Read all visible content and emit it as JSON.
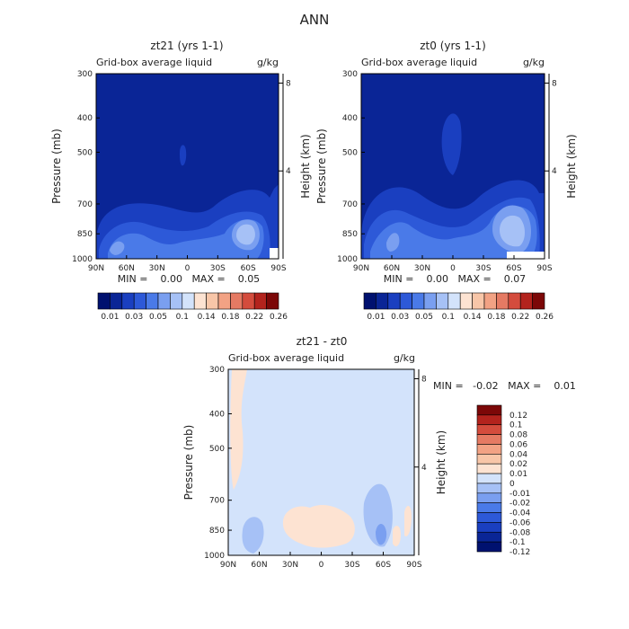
{
  "main_title": "ANN",
  "colors": {
    "abs_scale": [
      "#00116f",
      "#0a2596",
      "#1a3fc0",
      "#2d59d8",
      "#4a7ae8",
      "#7a9ff0",
      "#a6c1f6",
      "#d3e3fb",
      "#fde3d2",
      "#f8c6a8",
      "#f2a284",
      "#e57a63",
      "#d44c3d",
      "#b3231d",
      "#7c0808"
    ],
    "diff_scale": [
      "#00116f",
      "#0a2596",
      "#1a3fc0",
      "#2d59d8",
      "#4a7ae8",
      "#7a9ff0",
      "#a6c1f6",
      "#d3e3fb",
      "#fde3d2",
      "#f8c6a8",
      "#f2a284",
      "#e57a63",
      "#d44c3d",
      "#b3231d",
      "#7c0808"
    ],
    "field_bg": "#0a2596",
    "diff_bg": "#d3e3fb"
  },
  "chart_data": [
    {
      "type": "heatmap",
      "title": "zt21 (yrs 1-1)",
      "subtitle": "Grid-box average liquid",
      "units": "g/kg",
      "xlabel": "",
      "ylabel": "Pressure (mb)",
      "y2label": "Height (km)",
      "x_ticks": [
        "90N",
        "60N",
        "30N",
        "0",
        "30S",
        "60S",
        "90S"
      ],
      "y_ticks": [
        300,
        400,
        500,
        700,
        850,
        1000
      ],
      "y2_ticks": [
        8,
        4
      ],
      "stats": "MIN =    0.00   MAX =    0.05",
      "levels": [
        0.01,
        0.02,
        0.03,
        0.04,
        0.05,
        0.06,
        0.1,
        0.12,
        0.14,
        0.16,
        0.18,
        0.2,
        0.22,
        0.24,
        0.26
      ],
      "level_labels": [
        "0.01",
        "0.03",
        "0.05",
        "0.1",
        "0.14",
        "0.18",
        "0.22",
        "0.26"
      ]
    },
    {
      "type": "heatmap",
      "title": "zt0 (yrs 1-1)",
      "subtitle": "Grid-box average liquid",
      "units": "g/kg",
      "xlabel": "",
      "ylabel": "Pressure (mb)",
      "y2label": "Height (km)",
      "x_ticks": [
        "90N",
        "60N",
        "30N",
        "0",
        "30S",
        "60S",
        "90S"
      ],
      "y_ticks": [
        300,
        400,
        500,
        700,
        850,
        1000
      ],
      "y2_ticks": [
        8,
        4
      ],
      "stats": "MIN =    0.00   MAX =    0.07",
      "levels": [
        0.01,
        0.02,
        0.03,
        0.04,
        0.05,
        0.06,
        0.1,
        0.12,
        0.14,
        0.16,
        0.18,
        0.2,
        0.22,
        0.24,
        0.26
      ],
      "level_labels": [
        "0.01",
        "0.03",
        "0.05",
        "0.1",
        "0.14",
        "0.18",
        "0.22",
        "0.26"
      ]
    },
    {
      "type": "heatmap",
      "title": "zt21 - zt0",
      "subtitle": "Grid-box average liquid",
      "units": "g/kg",
      "xlabel": "",
      "ylabel": "Pressure (mb)",
      "y2label": "Height (km)",
      "x_ticks": [
        "90N",
        "60N",
        "30N",
        "0",
        "30S",
        "60S",
        "90S"
      ],
      "y_ticks": [
        300,
        400,
        500,
        700,
        850,
        1000
      ],
      "y2_ticks": [
        8,
        4
      ],
      "stats": "MIN =   -0.02   MAX =    0.01",
      "level_labels": [
        "0.12",
        "0.1",
        "0.08",
        "0.06",
        "0.04",
        "0.02",
        "0.01",
        "0",
        "-0.01",
        "-0.02",
        "-0.04",
        "-0.06",
        "-0.08",
        "-0.1",
        "-0.12"
      ]
    }
  ]
}
